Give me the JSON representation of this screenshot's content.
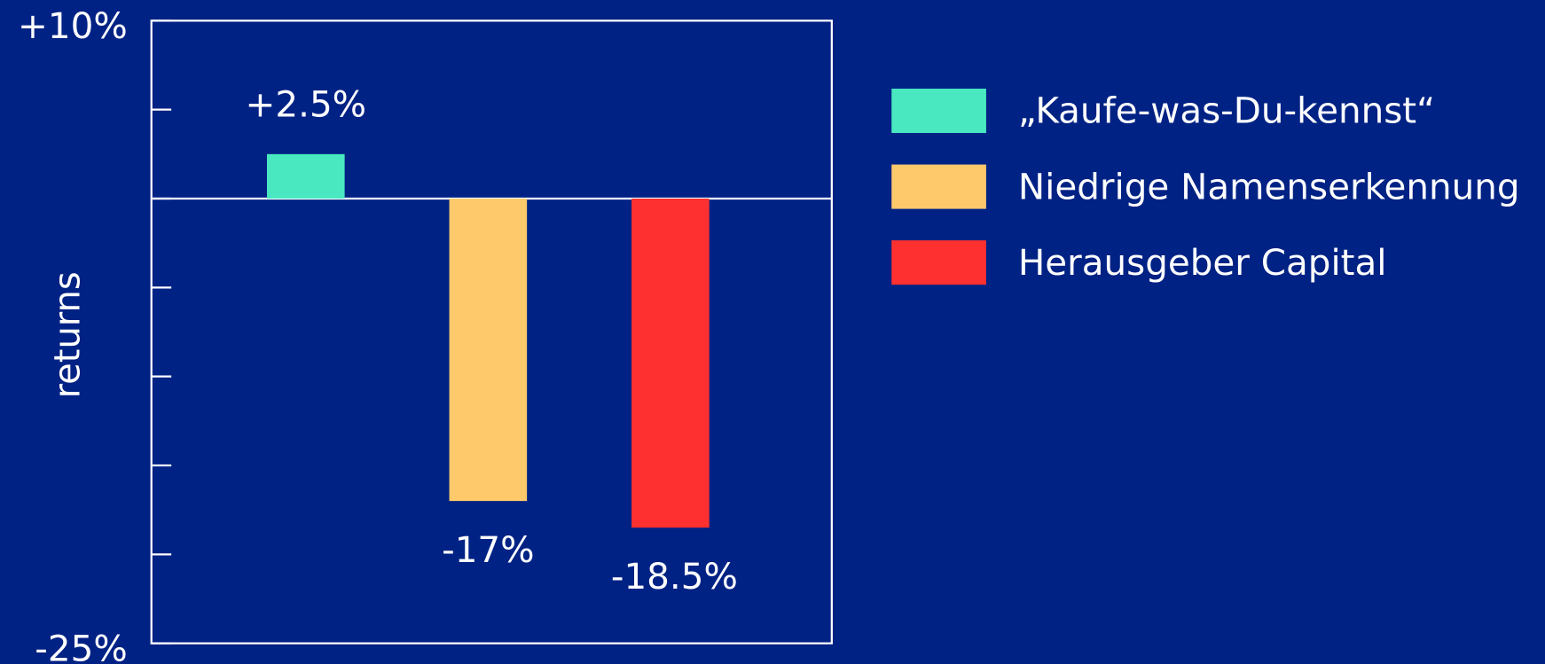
{
  "chart_data": {
    "type": "bar",
    "y_label": "returns",
    "ylim": [
      -25,
      10
    ],
    "yticks": [
      {
        "value": 10,
        "label": "+10%"
      },
      {
        "value": -25,
        "label": "-25%"
      }
    ],
    "minor_yticks": [
      5,
      0,
      -5,
      -10,
      -15,
      -20
    ],
    "series": [
      {
        "name": "„Kaufe-was-Du-kennst“",
        "color": "#4ae8c0",
        "values": [
          2.5
        ],
        "value_labels": [
          "+2.5%"
        ]
      },
      {
        "name": "Niedrige Namenserkennung",
        "color": "#fdc96b",
        "values": [
          -17
        ],
        "value_labels": [
          "-17%"
        ]
      },
      {
        "name": "Herausgeber Capital",
        "color": "#ff3030",
        "values": [
          -18.5
        ],
        "value_labels": [
          "-18.5%"
        ]
      }
    ]
  }
}
